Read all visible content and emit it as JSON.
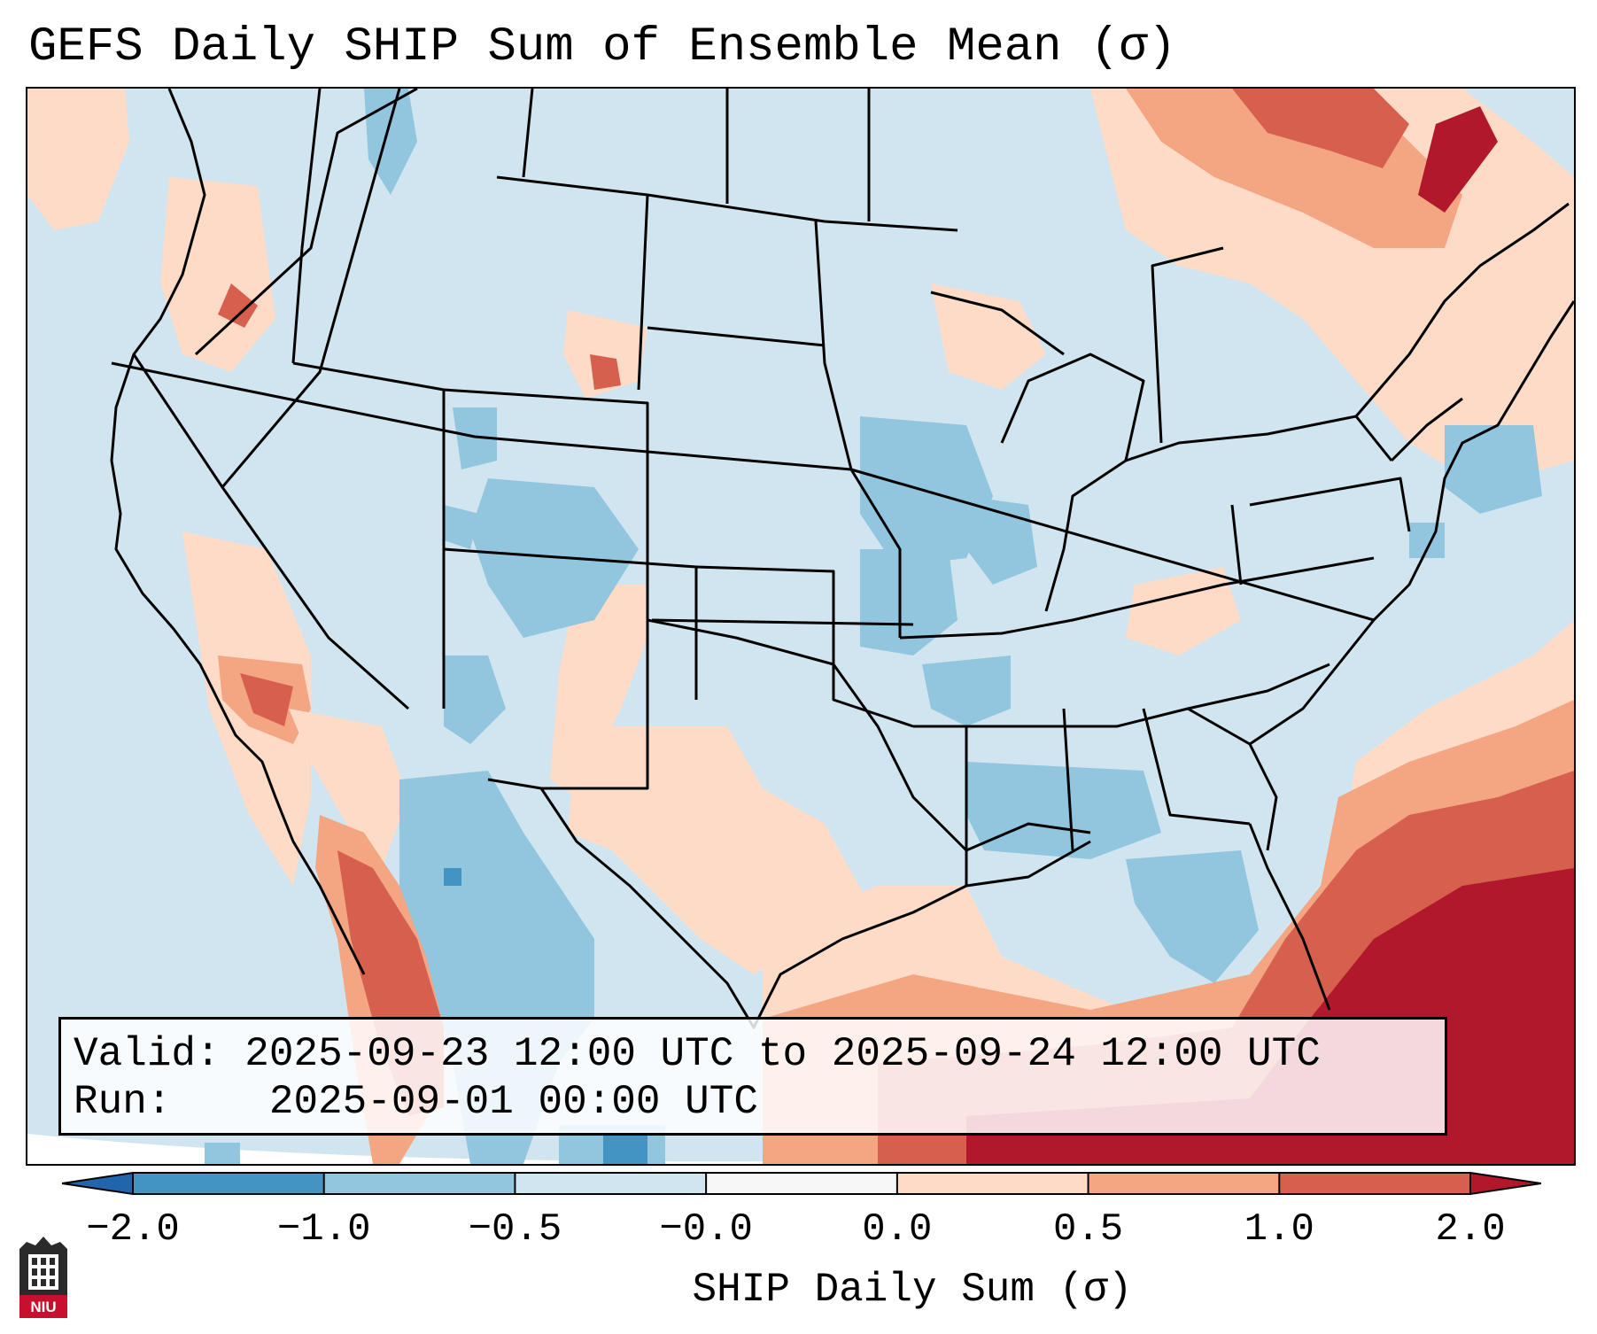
{
  "title": "GEFS Daily SHIP Sum of Ensemble Mean (σ)",
  "info": {
    "valid_label": "Valid:",
    "valid_value": "2025-09-23 12:00 UTC to 2025-09-24 12:00 UTC",
    "run_label": "Run:",
    "run_value": "2025-09-01 00:00 UTC"
  },
  "colorbar": {
    "label": "SHIP Daily Sum (σ)",
    "ticks": [
      "-2.0",
      "-1.0",
      "-0.5",
      "-0.0",
      "0.0",
      "0.5",
      "1.0",
      "2.0"
    ],
    "colors": [
      "#2166ac",
      "#4393c3",
      "#92c5de",
      "#d1e5f0",
      "#f7f7f7",
      "#fddbc7",
      "#f4a582",
      "#d6604d",
      "#b2182b"
    ]
  },
  "logo": {
    "text": "NIU"
  }
}
